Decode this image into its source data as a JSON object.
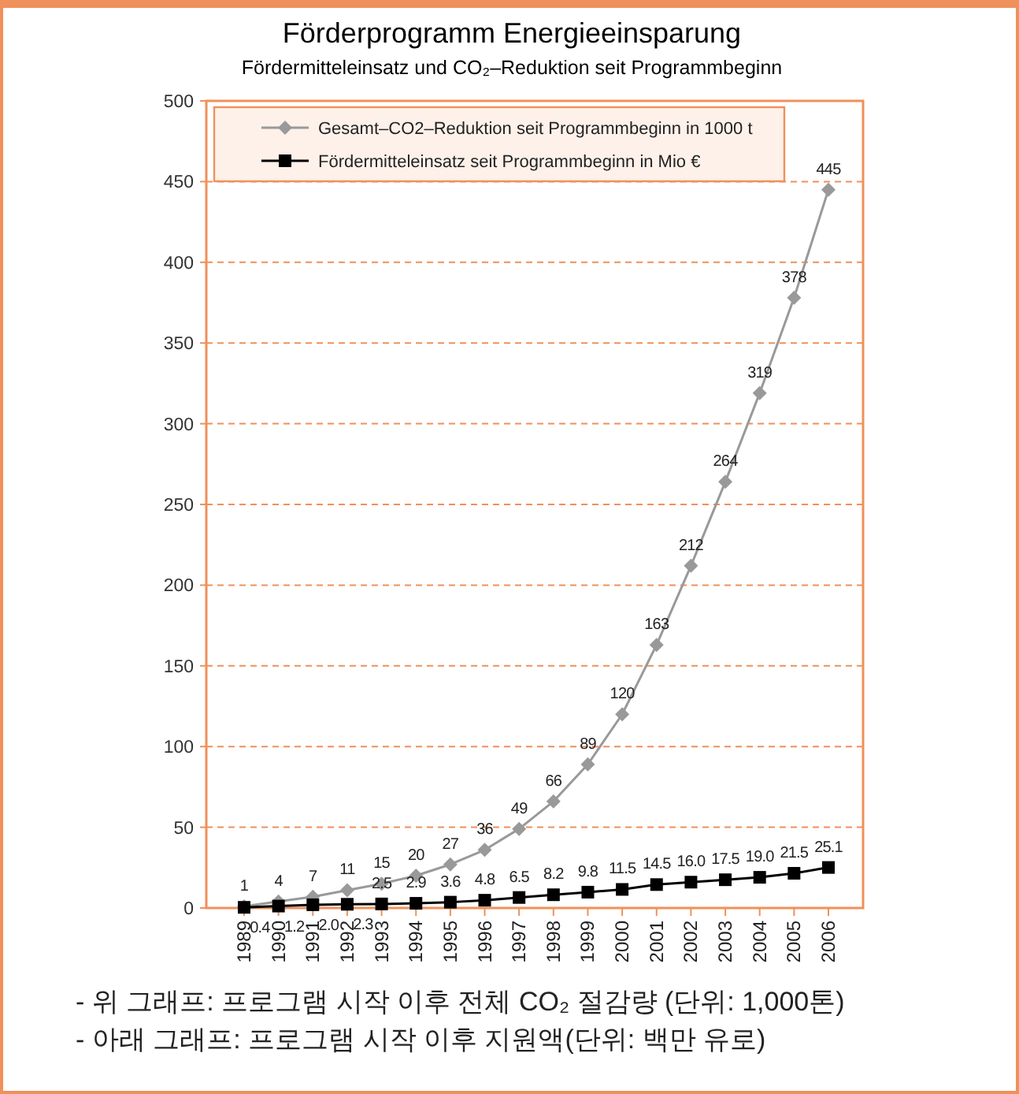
{
  "chart_data": {
    "type": "line",
    "title": "Förderprogramm Energieeinsparung",
    "subtitle": "Fördermitteleinsatz und CO₂–Reduktion seit Programmbeginn",
    "categories": [
      "1989",
      "1990",
      "1991",
      "1992",
      "1993",
      "1994",
      "1995",
      "1996",
      "1997",
      "1998",
      "1999",
      "2000",
      "2001",
      "2002",
      "2003",
      "2004",
      "2005",
      "2006"
    ],
    "series": [
      {
        "name": "Gesamt–CO2–Reduktion seit Programmbeginn in 1000 t",
        "color": "#999999",
        "marker": "diamond",
        "values": [
          1,
          4,
          7,
          11,
          15,
          20,
          27,
          36,
          49,
          66,
          89,
          120,
          163,
          212,
          264,
          319,
          378,
          445
        ],
        "value_labels": [
          "1",
          "4",
          "7",
          "11",
          "15",
          "20",
          "27",
          "36",
          "49",
          "66",
          "89",
          "120",
          "163",
          "212",
          "264",
          "319",
          "378",
          "445"
        ]
      },
      {
        "name": "Fördermitteleinsatz seit Programmbeginn in Mio €",
        "color": "#000000",
        "marker": "square",
        "values": [
          0.4,
          1.2,
          2.0,
          2.3,
          2.5,
          2.9,
          3.6,
          4.8,
          6.5,
          8.2,
          9.8,
          11.5,
          14.5,
          16.0,
          17.5,
          19.0,
          21.5,
          25.1
        ],
        "value_labels": [
          "0.4",
          "1.2",
          "2.0",
          "2.3",
          "2.5",
          "2.9",
          "3.6",
          "4.8",
          "6.5",
          "8.2",
          "9.8",
          "11.5",
          "14.5",
          "16.0",
          "17.5",
          "19.0",
          "21.5",
          "25.1"
        ]
      }
    ],
    "ylim": [
      0,
      500
    ],
    "yticks": [
      0,
      50,
      100,
      150,
      200,
      250,
      300,
      350,
      400,
      450,
      500
    ],
    "grid": "y",
    "legend": "top left",
    "annotations": [
      "- 위 그래프:  프로그램 시작 이후 전체 CO₂ 절감량 (단위: 1,000톤)",
      "- 아래 그래프:  프로그램 시작 이후 지원액(단위: 백만 유로)"
    ]
  }
}
